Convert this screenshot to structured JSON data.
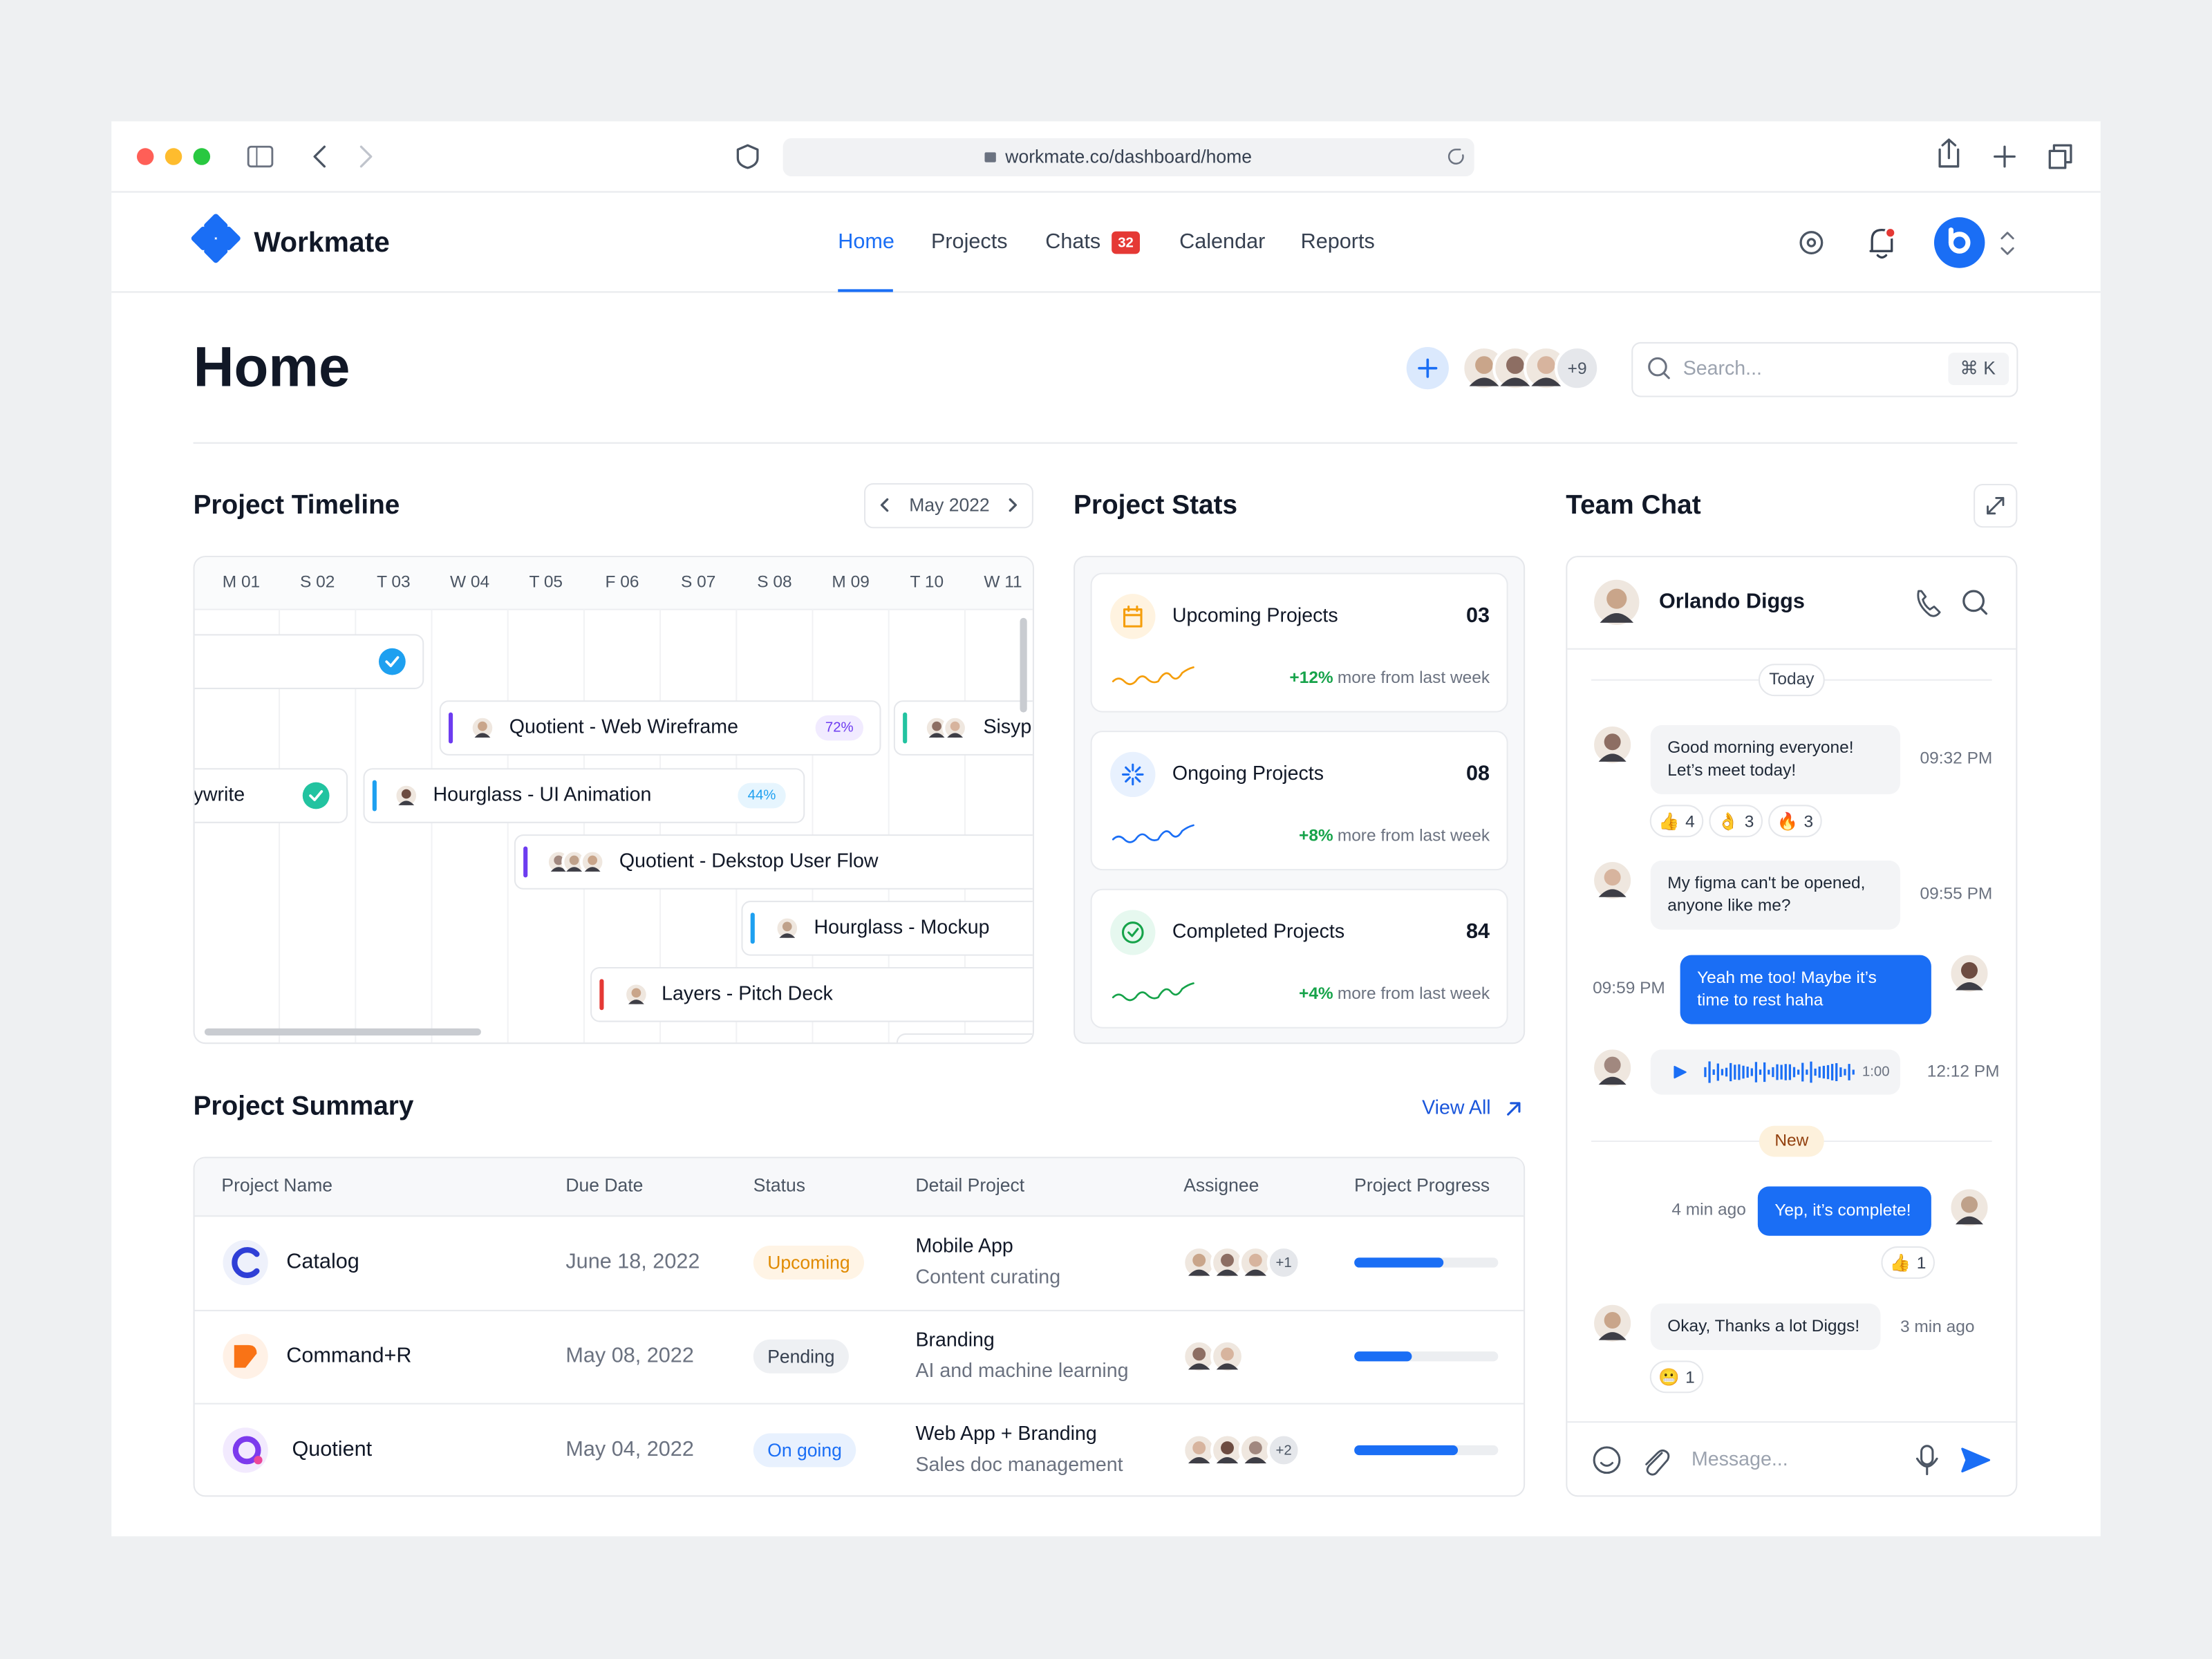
{
  "browser": {
    "url": "workmate.co/dashboard/home"
  },
  "nav": {
    "brand": "Workmate",
    "links": [
      "Home",
      "Projects",
      "Chats",
      "Calendar",
      "Reports"
    ],
    "chats_badge": "32"
  },
  "header": {
    "title": "Home",
    "avatars_more": "+9",
    "search_placeholder": "Search...",
    "search_shortcut": "⌘ K"
  },
  "timeline": {
    "title": "Project Timeline",
    "month": "May 2022",
    "days": [
      "M 01",
      "S 02",
      "T 03",
      "W 04",
      "T 05",
      "F 06",
      "S 07",
      "S 08",
      "M 09",
      "T 10",
      "W 11"
    ],
    "tasks": [
      {
        "label": "Quotient -  Web Wireframe",
        "progress": "72%"
      },
      {
        "label": "Sisypl"
      },
      {
        "label": "ywrite"
      },
      {
        "label": "Hourglass -  UI Animation",
        "progress": "44%"
      },
      {
        "label": "Quotient -  Dekstop User Flow"
      },
      {
        "label": "Hourglass -  Mockup"
      },
      {
        "label": "Layers - Pitch Deck"
      }
    ]
  },
  "stats": {
    "title": "Project Stats",
    "cards": [
      {
        "label": "Upcoming Projects",
        "value": "03",
        "change": "+12%",
        "note": "more from last week"
      },
      {
        "label": "Ongoing Projects",
        "value": "08",
        "change": "+8%",
        "note": "more from last week"
      },
      {
        "label": "Completed Projects",
        "value": "84",
        "change": "+4%",
        "note": "more from last week"
      }
    ]
  },
  "chat": {
    "title": "Team Chat",
    "contact": "Orlando Diggs",
    "today": "Today",
    "new": "New",
    "placeholder": "Message...",
    "messages": [
      {
        "text": [
          "Good morning everyone!",
          "Let’s meet today!"
        ],
        "time": "09:32 PM",
        "reactions": [
          {
            "emoji": "👍",
            "count": 4
          },
          {
            "emoji": "👌",
            "count": 3
          },
          {
            "emoji": "🔥",
            "count": 3
          }
        ]
      },
      {
        "text": [
          "My figma can't be opened,",
          "anyone like me?"
        ],
        "time": "09:55 PM"
      },
      {
        "text": [
          "Yeah me too! Maybe it’s",
          "time to rest haha"
        ],
        "time": "09:59 PM"
      },
      {
        "duration": "1:00",
        "time": "12:12 PM"
      },
      {
        "text": [
          "Yep, it’s complete!"
        ],
        "time": "4 min ago",
        "reactions": [
          {
            "emoji": "👍",
            "count": 1
          }
        ]
      },
      {
        "text": [
          "Okay, Thanks a lot Diggs!"
        ],
        "time": "3 min ago",
        "reactions": [
          {
            "emoji": "😬",
            "count": 1
          }
        ]
      }
    ]
  },
  "summary": {
    "title": "Project Summary",
    "view_all": "View All",
    "columns": [
      "Project Name",
      "Due Date",
      "Status",
      "Detail Project",
      "Assignee",
      "Project Progress"
    ],
    "rows": [
      {
        "name": "Catalog",
        "due": "June 18, 2022",
        "status": "Upcoming",
        "detail": "Mobile App",
        "detail_sub": "Content curating",
        "assignees_more": "+1",
        "progress": 62
      },
      {
        "name": "Command+R",
        "due": "May 08, 2022",
        "status": "Pending",
        "detail": "Branding",
        "detail_sub": "AI and machine learning",
        "progress": 40
      },
      {
        "name": "Quotient",
        "due": "May 04, 2022",
        "status": "On going",
        "detail": "Web App + Branding",
        "detail_sub": "Sales doc management",
        "assignees_more": "+2",
        "progress": 72
      }
    ]
  }
}
